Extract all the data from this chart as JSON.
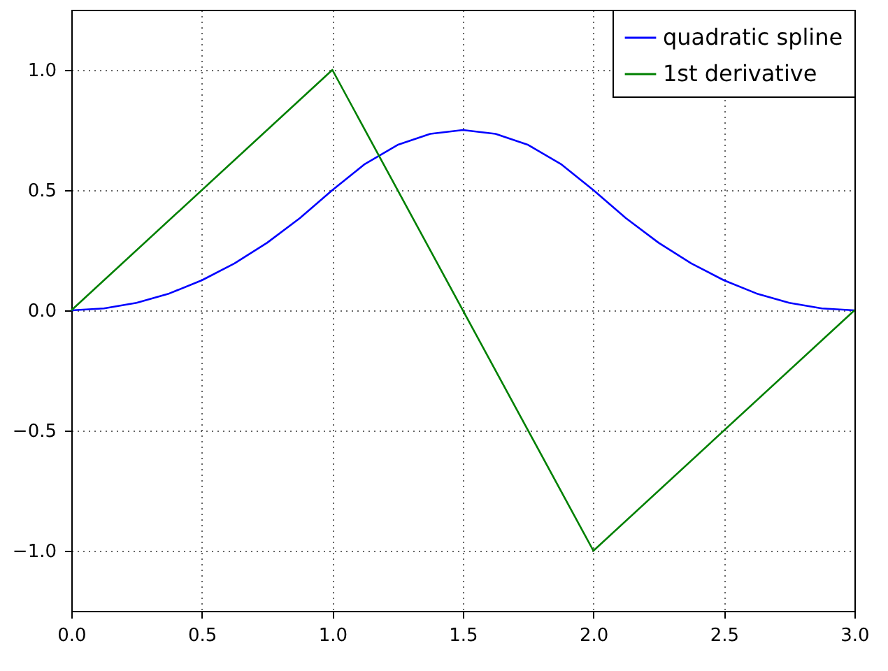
{
  "chart_data": {
    "type": "line",
    "x": [
      0,
      0.125,
      0.25,
      0.375,
      0.5,
      0.625,
      0.75,
      0.875,
      1,
      1.125,
      1.25,
      1.375,
      1.5,
      1.625,
      1.75,
      1.875,
      2,
      2.125,
      2.25,
      2.375,
      2.5,
      2.625,
      2.75,
      2.875,
      3
    ],
    "series": [
      {
        "name": "quadratic spline",
        "color": "#0000ff",
        "values": [
          0,
          0.008,
          0.031,
          0.07,
          0.125,
          0.195,
          0.281,
          0.383,
          0.5,
          0.609,
          0.688,
          0.734,
          0.75,
          0.734,
          0.688,
          0.609,
          0.5,
          0.383,
          0.281,
          0.195,
          0.125,
          0.07,
          0.031,
          0.008,
          0
        ]
      },
      {
        "name": "1st derivative",
        "color": "#008000",
        "x": [
          0,
          1,
          2,
          3
        ],
        "values": [
          0,
          1,
          -1,
          0
        ]
      }
    ],
    "xlim": [
      0,
      3
    ],
    "xticks": [
      {
        "value": 0,
        "label": "0.0"
      },
      {
        "value": 0.5,
        "label": "0.5"
      },
      {
        "value": 1,
        "label": "1.0"
      },
      {
        "value": 1.5,
        "label": "1.5"
      },
      {
        "value": 2,
        "label": "2.0"
      },
      {
        "value": 2.5,
        "label": "2.5"
      },
      {
        "value": 3,
        "label": "3.0"
      }
    ],
    "ylim": [
      -1.25,
      1.25
    ],
    "yticks": [
      {
        "value": -1,
        "label": "−1.0"
      },
      {
        "value": -0.5,
        "label": "−0.5"
      },
      {
        "value": 0,
        "label": "0.0"
      },
      {
        "value": 0.5,
        "label": "0.5"
      },
      {
        "value": 1,
        "label": "1.0"
      }
    ],
    "grid": true,
    "legend": "top right",
    "marker": "none",
    "line_style": "solid"
  }
}
